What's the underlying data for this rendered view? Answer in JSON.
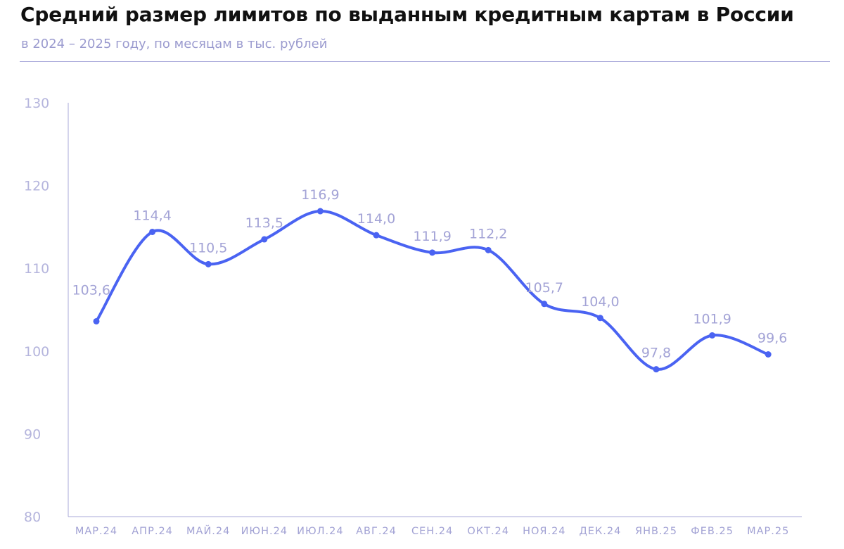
{
  "header": {
    "title": "Средний размер лимитов по выданным кредитным картам в России",
    "subtitle": "в 2024 – 2025 году, по месяцам в тыс. рублей"
  },
  "colors": {
    "line": "#4a63f2",
    "axis": "#a9a9d8",
    "label": "#a3a3d6",
    "divider": "#a7a7d9"
  },
  "chart_data": {
    "type": "line",
    "categories": [
      "МАР.24",
      "АПР.24",
      "МАЙ.24",
      "ИЮН.24",
      "ИЮЛ.24",
      "АВГ.24",
      "СЕН.24",
      "ОКТ.24",
      "НОЯ.24",
      "ДЕК.24",
      "ЯНВ.25",
      "ФЕВ.25",
      "МАР.25"
    ],
    "values": [
      103.6,
      114.4,
      110.5,
      113.5,
      116.9,
      114.0,
      111.9,
      112.2,
      105.7,
      104.0,
      97.8,
      101.9,
      99.6
    ],
    "value_labels": [
      "103,6",
      "114,4",
      "110,5",
      "113,5",
      "116,9",
      "114,0",
      "111,9",
      "112,2",
      "105,7",
      "104,0",
      "97,8",
      "101,9",
      "99,6"
    ],
    "yticks": [
      80,
      90,
      100,
      110,
      120,
      130
    ],
    "ylim": [
      80,
      130
    ],
    "title": "Средний размер лимитов по выданным кредитным картам в России",
    "xlabel": "",
    "ylabel": "",
    "grid": false,
    "legend": "none",
    "smooth": true
  }
}
